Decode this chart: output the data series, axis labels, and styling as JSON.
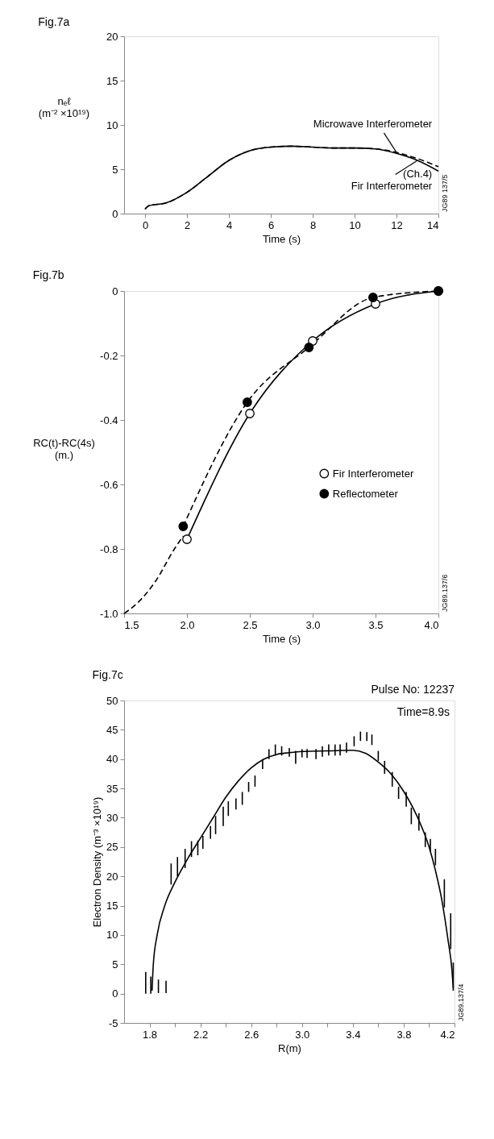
{
  "chart_data": [
    {
      "type": "line",
      "title": "Fig.7a",
      "xlabel": "Time (s)",
      "ylabel": "nₑℓ\n(m⁻² ×10¹⁹)",
      "xlim": [
        -1,
        14
      ],
      "xticks": [
        0,
        2,
        4,
        6,
        8,
        10,
        12,
        14
      ],
      "ylim": [
        0,
        20
      ],
      "yticks": [
        0,
        5,
        10,
        15,
        20
      ],
      "grid": false,
      "annotations": [
        "JG89 137/5"
      ],
      "series": [
        {
          "name": "Microwave Interferometer",
          "color": "#000000",
          "line_style": "dashed",
          "x": [
            0,
            0.2,
            1,
            2,
            3,
            4,
            5,
            6,
            7,
            8,
            9,
            10,
            11,
            12,
            13,
            14
          ],
          "values": [
            0.5,
            0.9,
            1.2,
            2.4,
            4.2,
            6.0,
            7.1,
            7.5,
            7.6,
            7.5,
            7.4,
            7.4,
            7.3,
            6.9,
            6.2,
            5.3
          ]
        },
        {
          "name": "(Ch.4)\nFir Interferometer",
          "color": "#000000",
          "line_style": "solid",
          "x": [
            0,
            0.2,
            1,
            2,
            3,
            4,
            5,
            6,
            7,
            8,
            9,
            10,
            11,
            12,
            13,
            14
          ],
          "values": [
            0.5,
            0.9,
            1.2,
            2.4,
            4.2,
            6.0,
            7.1,
            7.5,
            7.6,
            7.5,
            7.4,
            7.4,
            7.3,
            6.8,
            6.0,
            4.8
          ]
        }
      ]
    },
    {
      "type": "line",
      "title": "Fig.7b",
      "xlabel": "Time (s)",
      "ylabel": "RC(t)-RC(4s)\n(m.)",
      "xlim": [
        1.5,
        4.0
      ],
      "xticks": [
        1.5,
        {
          "value": 2,
          "label": "2.0"
        },
        2.5,
        {
          "value": 3,
          "label": "3.0"
        },
        3.5,
        {
          "value": 4,
          "label": "4.0"
        }
      ],
      "ylim": [
        -1.0,
        0
      ],
      "yticks": [
        0,
        -0.2,
        -0.4,
        -0.6,
        -0.8,
        {
          "value": -1,
          "label": "-1.0"
        }
      ],
      "grid": false,
      "legend": "right",
      "annotations": [
        "JG89.137/6"
      ],
      "series": [
        {
          "name": "Fir Interferometer",
          "color": "#000000",
          "line_style": "solid",
          "marker": "circle",
          "x": [
            2.0,
            2.5,
            3.0,
            3.5,
            4.0
          ],
          "values": [
            -0.77,
            -0.38,
            -0.155,
            -0.04,
            0.0
          ]
        },
        {
          "name": "Reflectometer",
          "color": "#000000",
          "line_style": "dashed",
          "marker": "circle",
          "x": [
            1.97,
            2.48,
            2.97,
            3.48,
            4.0
          ],
          "values": [
            -0.73,
            -0.345,
            -0.175,
            -0.02,
            0.0
          ]
        },
        {
          "color": "#000000",
          "line_style": "dashed",
          "marker": "none",
          "x": [
            1.5,
            1.6,
            1.75,
            1.9,
            1.97
          ],
          "values": [
            -1.0,
            -0.97,
            -0.9,
            -0.8,
            -0.76
          ]
        }
      ]
    },
    {
      "type": "line",
      "title": "Fig.7c",
      "xlabel": "R(m)",
      "ylabel": "Electron Density (m⁻³ ×10¹⁹)",
      "xlim": [
        1.6,
        4.2
      ],
      "xticks": [
        1.8,
        {
          "value": 2.0,
          "label": null
        },
        2.2,
        {
          "value": 2.4,
          "label": null
        },
        2.6,
        {
          "value": 2.8,
          "label": null
        },
        {
          "value": 3.0,
          "label": "3.0"
        },
        {
          "value": 3.2,
          "label": null
        },
        3.4,
        {
          "value": 3.6,
          "label": null
        },
        3.8,
        {
          "value": 4.0,
          "label": null
        },
        4.2
      ],
      "ylim": [
        -5,
        50
      ],
      "yticks": [
        -5,
        0,
        5,
        10,
        15,
        20,
        25,
        30,
        35,
        40,
        45,
        50
      ],
      "grid": false,
      "annotations": [
        "Pulse No: 12237",
        "Time=8.9s",
        "JG89.137/4"
      ],
      "series": [
        {
          "type": "line",
          "color": "#000000",
          "line_style": "solid",
          "x": [
            1.82,
            1.83,
            1.86,
            1.92,
            2.0,
            2.1,
            2.2,
            2.3,
            2.4,
            2.5,
            2.6,
            2.7,
            2.8,
            2.9,
            3.0,
            3.2,
            3.4,
            3.5,
            3.6,
            3.7,
            3.8,
            3.9,
            4.0,
            4.05,
            4.1,
            4.15,
            4.18,
            4.19
          ],
          "values": [
            0.5,
            5,
            10,
            15,
            19,
            23,
            26.5,
            30,
            33.5,
            36.3,
            38.5,
            40,
            40.8,
            41.1,
            41.3,
            41.4,
            41.5,
            41,
            39.5,
            37.5,
            34.5,
            30.5,
            25,
            21,
            16,
            9,
            4,
            1
          ]
        },
        {
          "type": "bar",
          "color": "#000000",
          "x": [
            1.77,
            1.81,
            1.87,
            1.93,
            1.97,
            2.02,
            2.08,
            2.13,
            2.18,
            2.22,
            2.28,
            2.32,
            2.38,
            2.42,
            2.48,
            2.53,
            2.58,
            2.63,
            2.69,
            2.74,
            2.79,
            2.84,
            2.9,
            2.95,
            3.0,
            3.04,
            3.11,
            3.16,
            3.21,
            3.26,
            3.3,
            3.35,
            3.41,
            3.46,
            3.51,
            3.55,
            3.6,
            3.65,
            3.71,
            3.76,
            3.82,
            3.86,
            3.92,
            3.97,
            4.01,
            4.05,
            4.12,
            4.17,
            4.19
          ],
          "base": [
            0,
            0,
            0.1,
            0.1,
            18.6,
            20,
            21.4,
            23.3,
            23.6,
            24.7,
            26.4,
            27.2,
            28.6,
            30.3,
            31.4,
            32.2,
            34.4,
            35.3,
            38.3,
            40,
            40.6,
            40.6,
            40.4,
            39.2,
            40.3,
            40.2,
            40,
            40.4,
            40.6,
            40.6,
            40.6,
            41.1,
            42.2,
            43.1,
            43.1,
            42.4,
            39.7,
            37.5,
            35.3,
            33.2,
            31.9,
            28.9,
            27.8,
            25,
            24.2,
            21.9,
            14.7,
            7.6,
            0.5
          ],
          "values": [
            3.7,
            2.9,
            2.3,
            2.1,
            3.6,
            3.3,
            3.3,
            2.7,
            2.5,
            2.2,
            2.2,
            3.1,
            3.3,
            2.5,
            1.9,
            2.2,
            1.7,
            1.9,
            1.7,
            1.7,
            1.9,
            1.6,
            1.5,
            2.2,
            1.4,
            1.5,
            1.7,
            1.8,
            1.9,
            1.9,
            1.9,
            1.7,
            1.7,
            1.6,
            1.5,
            1.8,
            1.7,
            2.2,
            2.5,
            2.1,
            2.5,
            2.8,
            3.0,
            2.5,
            2.2,
            2.8,
            4.8,
            6.1,
            4.8
          ]
        }
      ]
    }
  ]
}
